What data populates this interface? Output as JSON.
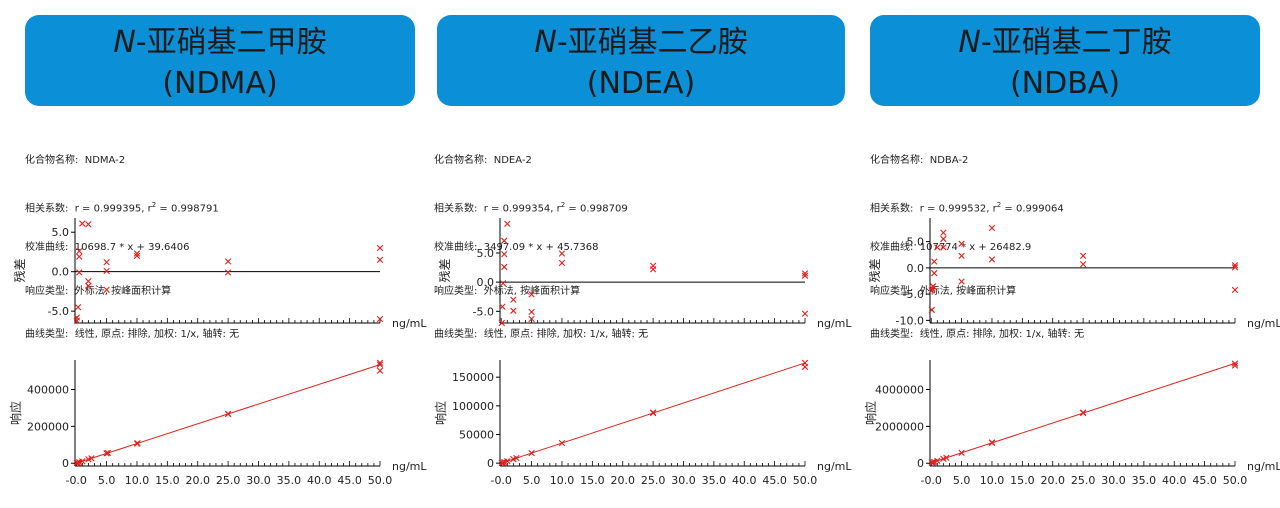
{
  "colors": {
    "header_bg": "#0b8fd6",
    "point": "#e0201c",
    "fit_line": "#e0201c",
    "axis": "#000000"
  },
  "panels": [
    {
      "title_italic": "N",
      "title_rest": "-亚硝基二甲胺",
      "abbr": "(NDMA)",
      "info": {
        "compound": "化合物名称:  NDMA-2",
        "corr_prefix": "相关系数:  r = 0.999395, r",
        "corr_sup": "2",
        "corr_suffix": " = 0.998791",
        "curve": "校准曲线:  10698.7 * x + 39.6406",
        "response": "响应类型:  外标法, 按峰面积计算",
        "curve_type": "曲线类型:  线性, 原点: 排除, 加权: 1/x, 轴转: 无"
      }
    },
    {
      "title_italic": "N",
      "title_rest": "-亚硝基二乙胺",
      "abbr": "(NDEA)",
      "info": {
        "compound": "化合物名称:  NDEA-2",
        "corr_prefix": "相关系数:  r = 0.999354, r",
        "corr_sup": "2",
        "corr_suffix": " = 0.998709",
        "curve": "校准曲线:  3497.09 * x + 45.7368",
        "response": "响应类型:  外标法, 按峰面积计算",
        "curve_type": "曲线类型:  线性, 原点: 排除, 加权: 1/x, 轴转: 无"
      }
    },
    {
      "title_italic": "N",
      "title_rest": "-亚硝基二丁胺",
      "abbr": "(NDBA)",
      "info": {
        "compound": "化合物名称:  NDBA-2",
        "corr_prefix": "相关系数:  r = 0.999532, r",
        "corr_sup": "2",
        "corr_suffix": " = 0.999064",
        "curve": "校准曲线:  107774 * x + 26482.9",
        "response": "响应类型:  外标法, 按峰面积计算",
        "curve_type": "曲线类型:  线性, 原点: 排除, 加权: 1/x, 轴转: 无"
      }
    }
  ],
  "chart_data": [
    {
      "type": "scatter",
      "panel": 0,
      "plot": "residual",
      "ylabel": "残差",
      "xunit": "ng/mL",
      "ylim": [
        -6.5,
        6.8
      ],
      "xlim": [
        -0.2,
        50.0
      ],
      "yticks": [
        -5.0,
        0.0,
        5.0
      ],
      "ytick_labels": [
        "-5.0",
        "0.0",
        "5.0"
      ],
      "baseline": 0,
      "points": [
        [
          0.1,
          -6.2
        ],
        [
          0.1,
          -5.8
        ],
        [
          0.3,
          -4.5
        ],
        [
          0.5,
          -0.1
        ],
        [
          0.5,
          1.9
        ],
        [
          0.5,
          2.6
        ],
        [
          1.0,
          6.1
        ],
        [
          2.0,
          -1.2
        ],
        [
          2.0,
          -1.8
        ],
        [
          2.0,
          6.0
        ],
        [
          5.0,
          -2.3
        ],
        [
          5.0,
          0.1
        ],
        [
          5.0,
          1.2
        ],
        [
          10.0,
          2.0
        ],
        [
          10.0,
          2.3
        ],
        [
          25.0,
          1.3
        ],
        [
          25.0,
          -0.1
        ],
        [
          50.0,
          3.0
        ],
        [
          50.0,
          1.5
        ],
        [
          50.0,
          -6.0
        ]
      ]
    },
    {
      "type": "scatter",
      "panel": 0,
      "plot": "calibration",
      "ylabel": "响应",
      "xlabel": "ng/mL",
      "ylim": [
        -15000,
        560000
      ],
      "xlim": [
        -0.2,
        50.0
      ],
      "yticks": [
        0,
        200000,
        400000
      ],
      "ytick_labels": [
        "0",
        "200000",
        "400000"
      ],
      "xticks": [
        0,
        5,
        10,
        15,
        20,
        25,
        30,
        35,
        40,
        45,
        50
      ],
      "xtick_labels": [
        "-0.0",
        "5.0",
        "10.0",
        "15.0",
        "20.0",
        "25.0",
        "30.0",
        "35.0",
        "40.0",
        "45.0",
        "50.0"
      ],
      "fit": {
        "slope": 10698.7,
        "intercept": 39.6406
      },
      "points": [
        [
          0.1,
          1000
        ],
        [
          0.25,
          2700
        ],
        [
          0.5,
          5400
        ],
        [
          1.0,
          10700
        ],
        [
          2.0,
          21400
        ],
        [
          2.5,
          26700
        ],
        [
          5.0,
          53500
        ],
        [
          5.2,
          55700
        ],
        [
          10.0,
          107000
        ],
        [
          10.1,
          108000
        ],
        [
          25.0,
          267000
        ],
        [
          25.0,
          268000
        ],
        [
          50.0,
          535000
        ],
        [
          50.0,
          545000
        ],
        [
          50.0,
          502000
        ]
      ]
    },
    {
      "type": "scatter",
      "panel": 1,
      "plot": "residual",
      "ylabel": "残差",
      "xunit": "ng/mL",
      "ylim": [
        -7.0,
        11.0
      ],
      "xlim": [
        -0.2,
        50.0
      ],
      "yticks": [
        -5.0,
        0.0,
        5.0
      ],
      "ytick_labels": [
        "-5.0",
        "0.0",
        "5.0"
      ],
      "baseline": 0,
      "points": [
        [
          0.1,
          -7.0
        ],
        [
          0.2,
          -4.2
        ],
        [
          0.3,
          -0.2
        ],
        [
          0.5,
          2.6
        ],
        [
          0.5,
          4.8
        ],
        [
          0.5,
          7.1
        ],
        [
          1.0,
          10.0
        ],
        [
          2.0,
          -3.0
        ],
        [
          2.0,
          -4.9
        ],
        [
          5.0,
          -2.1
        ],
        [
          5.0,
          -5.1
        ],
        [
          5.0,
          -6.3
        ],
        [
          10.0,
          3.3
        ],
        [
          10.0,
          4.9
        ],
        [
          25.0,
          2.2
        ],
        [
          25.0,
          2.8
        ],
        [
          50.0,
          1.1
        ],
        [
          50.0,
          1.5
        ],
        [
          50.0,
          -5.4
        ]
      ]
    },
    {
      "type": "scatter",
      "panel": 1,
      "plot": "calibration",
      "ylabel": "响应",
      "xlabel": "ng/mL",
      "ylim": [
        -5000,
        180000
      ],
      "xlim": [
        -0.2,
        50.0
      ],
      "yticks": [
        0,
        50000,
        100000,
        150000
      ],
      "ytick_labels": [
        "0",
        "50000",
        "100000",
        "150000"
      ],
      "xticks": [
        0,
        5,
        10,
        15,
        20,
        25,
        30,
        35,
        40,
        45,
        50
      ],
      "xtick_labels": [
        "-0.0",
        "5.0",
        "10.0",
        "15.0",
        "20.0",
        "25.0",
        "30.0",
        "35.0",
        "40.0",
        "45.0",
        "50.0"
      ],
      "fit": {
        "slope": 3497.09,
        "intercept": 45.7368
      },
      "points": [
        [
          0.1,
          400
        ],
        [
          0.25,
          900
        ],
        [
          0.5,
          1800
        ],
        [
          1.0,
          3500
        ],
        [
          2.0,
          7000
        ],
        [
          2.5,
          8800
        ],
        [
          5.0,
          17500
        ],
        [
          10.0,
          35000
        ],
        [
          25.0,
          87400
        ],
        [
          25.0,
          88400
        ],
        [
          50.0,
          175000
        ],
        [
          50.0,
          168000
        ]
      ]
    },
    {
      "type": "scatter",
      "panel": 2,
      "plot": "residual",
      "ylabel": "残差",
      "xunit": "ng/mL",
      "ylim": [
        -10.5,
        9.5
      ],
      "xlim": [
        -0.2,
        50.0
      ],
      "yticks": [
        -10.0,
        -5.0,
        0.0,
        5.0
      ],
      "ytick_labels": [
        "-10.0",
        "-5.0",
        "0.0",
        "5.0"
      ],
      "baseline": 0,
      "points": [
        [
          0.1,
          -8.0
        ],
        [
          0.1,
          -4.3
        ],
        [
          0.2,
          -4.0
        ],
        [
          0.3,
          -3.5
        ],
        [
          0.5,
          -1.0
        ],
        [
          0.5,
          1.2
        ],
        [
          1.0,
          3.9
        ],
        [
          2.0,
          3.9
        ],
        [
          2.0,
          5.5
        ],
        [
          2.0,
          6.7
        ],
        [
          5.0,
          -2.6
        ],
        [
          5.0,
          2.3
        ],
        [
          5.0,
          4.6
        ],
        [
          10.0,
          7.6
        ],
        [
          10.0,
          1.6
        ],
        [
          25.0,
          0.7
        ],
        [
          25.0,
          2.3
        ],
        [
          50.0,
          0.1
        ],
        [
          50.0,
          0.5
        ],
        [
          50.0,
          -4.2
        ]
      ]
    },
    {
      "type": "scatter",
      "panel": 2,
      "plot": "calibration",
      "ylabel": "响应",
      "xlabel": "ng/mL",
      "ylim": [
        -150000,
        5600000
      ],
      "xlim": [
        -0.2,
        50.0
      ],
      "yticks": [
        0,
        2000000,
        4000000
      ],
      "ytick_labels": [
        "0",
        "2000000",
        "4000000"
      ],
      "xticks": [
        0,
        5,
        10,
        15,
        20,
        25,
        30,
        35,
        40,
        45,
        50
      ],
      "xtick_labels": [
        "-0.0",
        "5.0",
        "10.0",
        "15.0",
        "20.0",
        "25.0",
        "30.0",
        "35.0",
        "40.0",
        "45.0",
        "50.0"
      ],
      "fit": {
        "slope": 107774,
        "intercept": 26482.9
      },
      "points": [
        [
          0.1,
          37000
        ],
        [
          0.25,
          53000
        ],
        [
          0.5,
          80000
        ],
        [
          1.0,
          134000
        ],
        [
          2.0,
          242000
        ],
        [
          2.5,
          296000
        ],
        [
          5.0,
          565000
        ],
        [
          10.0,
          1100000
        ],
        [
          10.0,
          1130000
        ],
        [
          25.0,
          2720000
        ],
        [
          25.0,
          2750000
        ],
        [
          50.0,
          5410000
        ],
        [
          50.0,
          5300000
        ]
      ]
    }
  ]
}
